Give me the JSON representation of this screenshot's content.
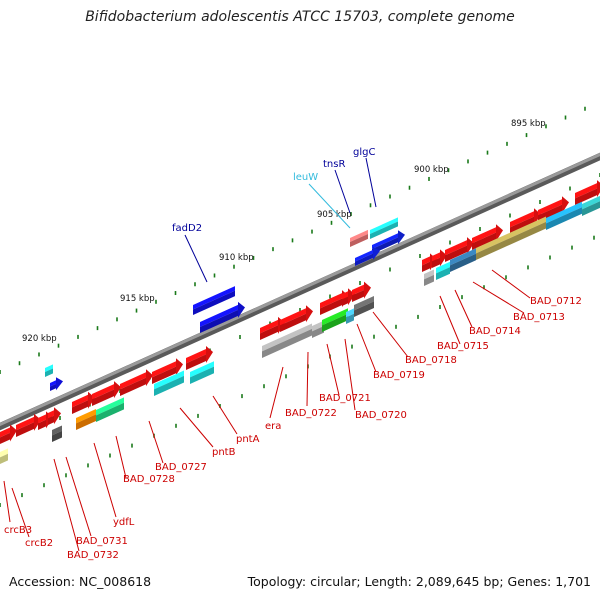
{
  "title": "Bifidobacterium adolescentis ATCC 15703, complete genome",
  "footer": {
    "accession": "Accession: NC_008618",
    "summary": "Topology: circular; Length: 2,089,645 bp; Genes: 1,701"
  },
  "colors": {
    "backbone": "#8a8a8a",
    "tick": "#1a7a1a",
    "red_label": "#cc0000",
    "blue_label": "#000099",
    "cyan_label": "#33bbdd",
    "cds_red": "#ee1111",
    "cds_blue": "#1111ee",
    "cds_cyan": "#22dddd",
    "cds_grey": "#aaaaaa",
    "cds_green": "#22cc22",
    "cds_orange": "#ff8800",
    "cds_olive": "#bbaa55"
  },
  "kbp_labels": [
    "895 kbp",
    "900 kbp",
    "905 kbp",
    "910 kbp",
    "915 kbp",
    "920 kbp"
  ],
  "gene_labels_top": [
    {
      "text": "fadD2",
      "color": "blue"
    },
    {
      "text": "leuW",
      "color": "cyan"
    },
    {
      "text": "tnsR",
      "color": "blue"
    },
    {
      "text": "glgC",
      "color": "blue"
    }
  ],
  "gene_labels_bottom": [
    "BAD_0712",
    "BAD_0713",
    "BAD_0714",
    "BAD_0715",
    "BAD_0718",
    "BAD_0719",
    "BAD_0720",
    "BAD_0721",
    "BAD_0722",
    "era",
    "pntA",
    "pntB",
    "BAD_0727",
    "BAD_0728",
    "ydfL",
    "BAD_0731",
    "BAD_0732",
    "crcB2",
    "crcB3"
  ]
}
